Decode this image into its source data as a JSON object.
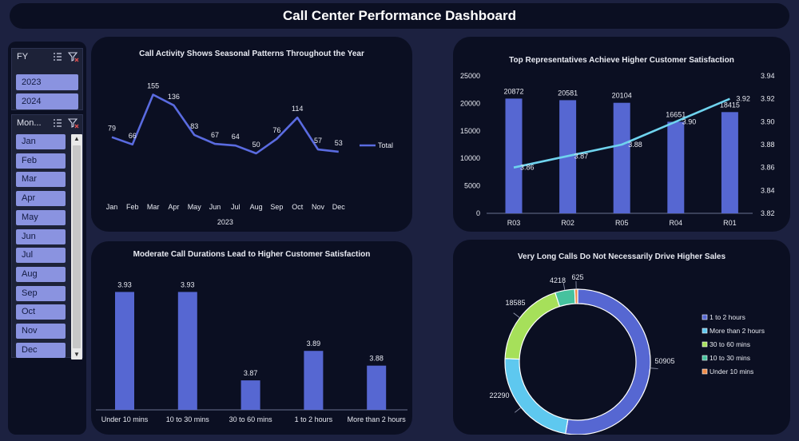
{
  "header": {
    "title": "Call Center Performance Dashboard"
  },
  "slicers": {
    "fy": {
      "label": "FY",
      "items": [
        "2023",
        "2024"
      ]
    },
    "month": {
      "label": "Mon...",
      "items": [
        "Jan",
        "Feb",
        "Mar",
        "Apr",
        "May",
        "Jun",
        "Jul",
        "Aug",
        "Sep",
        "Oct",
        "Nov",
        "Dec"
      ]
    }
  },
  "colors": {
    "bar": "#5667d2",
    "line_a": "#5a6be0",
    "line_b": "#6fd3ee",
    "panel": "#0b0f22",
    "background": "#1c2140"
  },
  "chart_data": [
    {
      "id": "call_activity",
      "type": "line",
      "title": "Call Activity Shows Seasonal Patterns Throughout the Year",
      "categories": [
        "Jan",
        "Feb",
        "Mar",
        "Apr",
        "May",
        "Jun",
        "Jul",
        "Aug",
        "Sep",
        "Oct",
        "Nov",
        "Dec"
      ],
      "group_label": "2023",
      "series": [
        {
          "name": "Total",
          "values": [
            79,
            66,
            155,
            136,
            83,
            67,
            64,
            50,
            76,
            114,
            57,
            53
          ]
        }
      ],
      "ylim": [
        30,
        170
      ],
      "legend": "right"
    },
    {
      "id": "top_reps",
      "type": "bar",
      "title": "Top Representatives Achieve Higher Customer Satisfaction",
      "categories": [
        "R03",
        "R02",
        "R05",
        "R04",
        "R01"
      ],
      "series": [
        {
          "values": [
            20872,
            20581,
            20104,
            16651,
            18415
          ]
        },
        {
          "type": "line",
          "values": [
            3.86,
            3.87,
            3.88,
            3.9,
            3.92
          ]
        }
      ],
      "y_ticks": [
        "0",
        "5000",
        "10000",
        "15000",
        "20000",
        "25000"
      ],
      "y2_ticks": [
        "3.82",
        "3.84",
        "3.86",
        "3.88",
        "3.90",
        "3.92",
        "3.94"
      ],
      "ylim": [
        0,
        25000
      ],
      "y2lim": [
        3.82,
        3.94
      ]
    },
    {
      "id": "durations",
      "type": "bar",
      "title": "Moderate Call Durations Lead to Higher Customer Satisfaction",
      "categories": [
        "Under 10 mins",
        "10 to 30 mins",
        "30 to 60 mins",
        "1 to 2 hours",
        "More than 2 hours"
      ],
      "values": [
        3.93,
        3.93,
        3.87,
        3.89,
        3.88
      ],
      "ylim": [
        3.85,
        3.94
      ]
    },
    {
      "id": "long_calls",
      "type": "pie",
      "title": "Very Long Calls Do Not Necessarily Drive Higher Sales",
      "categories": [
        "1 to 2 hours",
        "More than 2 hours",
        "30 to 60 mins",
        "10 to 30 mins",
        "Under 10 mins"
      ],
      "values": [
        50905,
        22290,
        18585,
        4218,
        625
      ],
      "slice_colors": [
        "#5667d2",
        "#5ec8ef",
        "#a6e05a",
        "#46c29e",
        "#ee8a48"
      ],
      "legend": "right"
    }
  ]
}
